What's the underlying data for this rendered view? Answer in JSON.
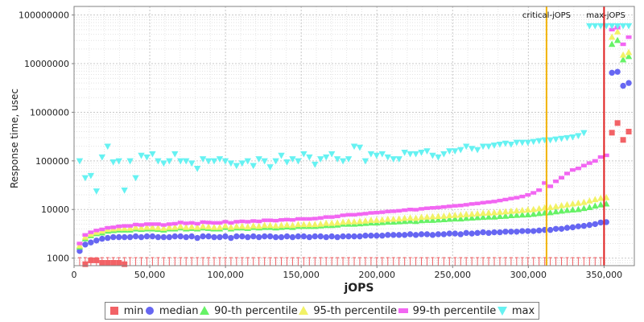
{
  "colors": {
    "min": "#f26266",
    "median": "#6666f2",
    "p90": "#66f266",
    "p95": "#f2f266",
    "p99": "#f266f2",
    "max": "#66f2f2",
    "critical_line": "#f2b300",
    "max_line": "#e01e1e"
  },
  "chart_data": {
    "type": "scatter",
    "xlabel": "jOPS",
    "ylabel": "Response time, usec",
    "xlim": [
      0,
      370000
    ],
    "ylim": [
      700,
      150000000
    ],
    "y_scale": "log",
    "grid": true,
    "legend_position": "bottom",
    "x_ticks": [
      "0",
      "50,000",
      "100,000",
      "150,000",
      "200,000",
      "250,000",
      "300,000",
      "350,000"
    ],
    "y_ticks": [
      "1000",
      "10000",
      "100000",
      "1000000",
      "10000000",
      "100000000"
    ],
    "vlines": [
      {
        "label": "critical-jOPS",
        "x": 312000
      },
      {
        "label": "max-jOPS",
        "x": 350000
      }
    ],
    "x": [
      3700,
      7400,
      11100,
      14800,
      18500,
      22200,
      25900,
      29600,
      33300,
      37000,
      40700,
      44400,
      48100,
      51800,
      55500,
      59200,
      62900,
      66600,
      70300,
      74000,
      77700,
      81400,
      85100,
      88800,
      92500,
      96200,
      99900,
      103600,
      107300,
      111000,
      114700,
      118400,
      122100,
      125800,
      129500,
      133200,
      136900,
      140600,
      144300,
      148000,
      151700,
      155400,
      159100,
      162800,
      166500,
      170200,
      173900,
      177600,
      181300,
      185000,
      188700,
      192400,
      196100,
      199800,
      203500,
      207200,
      210900,
      214600,
      218300,
      222000,
      225700,
      229400,
      233100,
      236800,
      240500,
      244200,
      247900,
      251600,
      255300,
      259000,
      262700,
      266400,
      270100,
      273800,
      277500,
      281200,
      284900,
      288600,
      292300,
      296000,
      299700,
      303400,
      307100,
      310800,
      314500,
      318200,
      321900,
      325600,
      329300,
      333000,
      336700,
      340400,
      344100,
      347800,
      351500,
      355200,
      358900,
      362600,
      366300
    ],
    "series": [
      {
        "name": "min",
        "values": [
          null,
          750,
          900,
          900,
          800,
          800,
          800,
          800,
          750,
          null,
          null,
          null,
          null,
          null,
          null,
          null,
          null,
          null,
          null,
          null,
          null,
          null,
          null,
          null,
          null,
          null,
          null,
          null,
          null,
          null,
          null,
          null,
          null,
          null,
          null,
          null,
          null,
          null,
          null,
          null,
          null,
          null,
          null,
          null,
          null,
          null,
          null,
          null,
          null,
          null,
          null,
          null,
          null,
          null,
          null,
          null,
          null,
          null,
          null,
          null,
          null,
          null,
          null,
          null,
          null,
          null,
          null,
          null,
          null,
          null,
          null,
          null,
          null,
          null,
          null,
          null,
          null,
          null,
          null,
          null,
          null,
          null,
          null,
          null,
          null,
          null,
          null,
          null,
          null,
          null,
          null,
          null,
          null,
          null,
          null,
          380000,
          600000,
          270000,
          400000
        ]
      },
      {
        "name": "median",
        "values": [
          1400,
          1900,
          2100,
          2300,
          2500,
          2600,
          2700,
          2700,
          2700,
          2700,
          2800,
          2700,
          2800,
          2800,
          2700,
          2700,
          2700,
          2800,
          2800,
          2700,
          2800,
          2600,
          2800,
          2800,
          2700,
          2700,
          2800,
          2600,
          2800,
          2800,
          2700,
          2800,
          2700,
          2800,
          2800,
          2700,
          2700,
          2800,
          2700,
          2800,
          2800,
          2700,
          2800,
          2800,
          2700,
          2800,
          2700,
          2800,
          2800,
          2800,
          2800,
          2900,
          2900,
          2900,
          2900,
          3000,
          3000,
          3000,
          3000,
          3100,
          3000,
          3100,
          3100,
          3000,
          3100,
          3100,
          3200,
          3200,
          3100,
          3300,
          3200,
          3300,
          3400,
          3300,
          3400,
          3400,
          3500,
          3500,
          3500,
          3600,
          3600,
          3600,
          3700,
          3800,
          3800,
          4000,
          4000,
          4200,
          4300,
          4500,
          4600,
          4800,
          5000,
          5400,
          5500,
          6500000,
          6800000,
          3500000,
          4000000
        ]
      },
      {
        "name": "90-th percentile",
        "values": [
          1700,
          2500,
          2900,
          3200,
          3300,
          3600,
          3700,
          3800,
          3800,
          3800,
          4000,
          3900,
          4000,
          4000,
          3900,
          3800,
          4000,
          4000,
          4200,
          4000,
          4100,
          4000,
          4200,
          4100,
          4000,
          4000,
          4300,
          4000,
          4200,
          4200,
          4100,
          4300,
          4200,
          4300,
          4300,
          4200,
          4300,
          4400,
          4300,
          4500,
          4500,
          4500,
          4500,
          4600,
          4700,
          4700,
          4800,
          5000,
          5000,
          5000,
          5100,
          5200,
          5300,
          5300,
          5400,
          5500,
          5500,
          5600,
          5700,
          5800,
          5700,
          5900,
          6000,
          6000,
          6100,
          6200,
          6300,
          6400,
          6400,
          6600,
          6700,
          6800,
          6900,
          7000,
          7000,
          7200,
          7300,
          7500,
          7600,
          7700,
          7800,
          8000,
          8300,
          8500,
          8600,
          9000,
          9300,
          9600,
          9800,
          10000,
          10500,
          11000,
          11800,
          12500,
          13000,
          25000000,
          30000000,
          12000000,
          14000000
        ]
      },
      {
        "name": "95-th percentile",
        "values": [
          1800,
          2700,
          3100,
          3400,
          3600,
          3900,
          4000,
          4100,
          4100,
          4100,
          4300,
          4200,
          4300,
          4300,
          4200,
          4100,
          4300,
          4300,
          4500,
          4300,
          4400,
          4300,
          4500,
          4400,
          4300,
          4300,
          4600,
          4300,
          4500,
          4500,
          4400,
          4600,
          4500,
          4700,
          4700,
          4600,
          4700,
          4800,
          4700,
          4900,
          4900,
          4900,
          4900,
          5000,
          5200,
          5200,
          5300,
          5500,
          5600,
          5600,
          5700,
          5800,
          6000,
          6000,
          6100,
          6300,
          6300,
          6400,
          6600,
          6700,
          6600,
          6900,
          7000,
          7100,
          7200,
          7300,
          7500,
          7600,
          7700,
          7900,
          8000,
          8200,
          8400,
          8500,
          8600,
          8800,
          9000,
          9200,
          9400,
          9600,
          9800,
          10000,
          10400,
          10800,
          11000,
          11500,
          12000,
          12500,
          13000,
          13500,
          14000,
          15000,
          16000,
          17000,
          17500,
          35000000,
          45000000,
          15000000,
          17000000
        ]
      },
      {
        "name": "99-th percentile",
        "values": [
          2000,
          3000,
          3400,
          3700,
          3900,
          4200,
          4300,
          4500,
          4600,
          4600,
          4900,
          4800,
          5000,
          5000,
          5000,
          4800,
          5000,
          5100,
          5400,
          5200,
          5300,
          5100,
          5500,
          5400,
          5300,
          5300,
          5600,
          5300,
          5600,
          5700,
          5600,
          5800,
          5700,
          6000,
          6000,
          5900,
          6100,
          6200,
          6100,
          6400,
          6400,
          6400,
          6500,
          6700,
          7000,
          7000,
          7200,
          7600,
          7800,
          7800,
          8000,
          8200,
          8500,
          8600,
          8800,
          9100,
          9200,
          9400,
          9700,
          10000,
          9900,
          10300,
          10600,
          10800,
          11000,
          11300,
          11600,
          11900,
          12100,
          12500,
          13000,
          13300,
          13800,
          14200,
          14600,
          15300,
          16000,
          16800,
          17500,
          18500,
          20000,
          22000,
          25000,
          35000,
          30000,
          38000,
          45000,
          55000,
          65000,
          70000,
          80000,
          90000,
          100000,
          120000,
          130000,
          50000000,
          55000000,
          25000000,
          35000000
        ]
      },
      {
        "name": "max",
        "values": [
          100000,
          45000,
          50000,
          24000,
          120000,
          200000,
          95000,
          100000,
          25000,
          100000,
          45000,
          130000,
          120000,
          140000,
          100000,
          90000,
          100000,
          140000,
          100000,
          100000,
          90000,
          70000,
          110000,
          100000,
          100000,
          110000,
          100000,
          90000,
          80000,
          90000,
          100000,
          80000,
          110000,
          100000,
          75000,
          100000,
          130000,
          95000,
          110000,
          100000,
          140000,
          120000,
          85000,
          110000,
          120000,
          140000,
          110000,
          100000,
          110000,
          200000,
          190000,
          100000,
          140000,
          130000,
          140000,
          120000,
          110000,
          110000,
          150000,
          140000,
          140000,
          150000,
          160000,
          130000,
          120000,
          140000,
          160000,
          160000,
          170000,
          200000,
          180000,
          170000,
          200000,
          200000,
          210000,
          220000,
          230000,
          220000,
          240000,
          240000,
          240000,
          250000,
          260000,
          270000,
          270000,
          280000,
          290000,
          300000,
          310000,
          330000,
          380000,
          60000000,
          60000000,
          60000000,
          60000000,
          60000000,
          60000000,
          60000000,
          60000000
        ]
      }
    ]
  },
  "legend": {
    "items": [
      {
        "label": "min",
        "key": "min"
      },
      {
        "label": "median",
        "key": "median"
      },
      {
        "label": "90-th percentile",
        "key": "p90"
      },
      {
        "label": "95-th percentile",
        "key": "p95"
      },
      {
        "label": "99-th percentile",
        "key": "p99"
      },
      {
        "label": "max",
        "key": "max"
      }
    ]
  }
}
